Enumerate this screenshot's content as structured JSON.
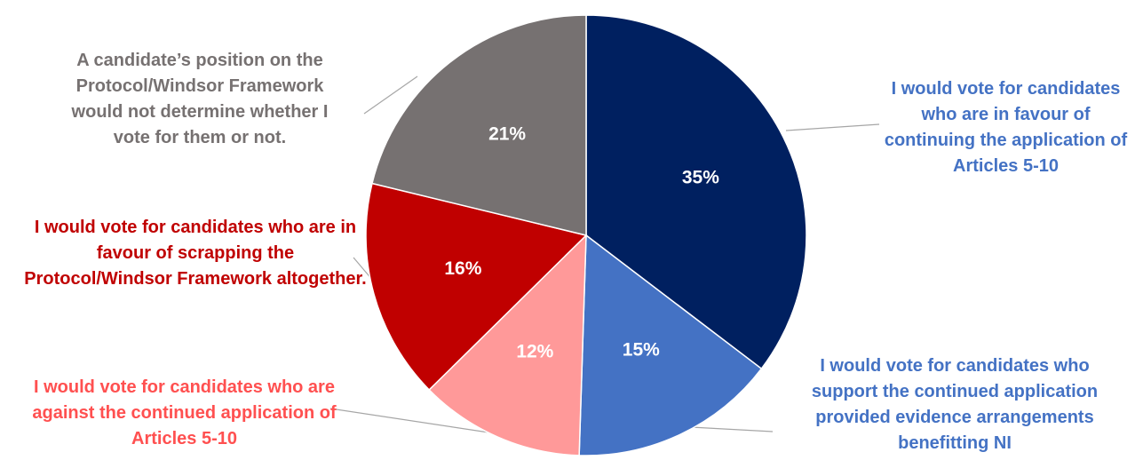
{
  "chart_data": {
    "type": "pie",
    "categories": [
      "I would vote for candidates who are in favour of continuing the application of Articles 5-10",
      "I would vote for candidates who support the continued application provided evidence arrangements benefitting NI",
      "I would vote for candidates who are against the continued application of Articles 5-10",
      "I would vote for candidates who are in favour of scrapping the Protocol/Windsor Framework altogether.",
      "A candidate’s position on the Protocol/Windsor Framework would not determine whether I vote for them or not."
    ],
    "values": [
      35,
      15,
      12,
      16,
      21
    ],
    "value_labels": [
      "35%",
      "15%",
      "12%",
      "16%",
      "21%"
    ],
    "colors": [
      "#002060",
      "#4472c4",
      "#ff9999",
      "#c00000",
      "#767171"
    ]
  }
}
